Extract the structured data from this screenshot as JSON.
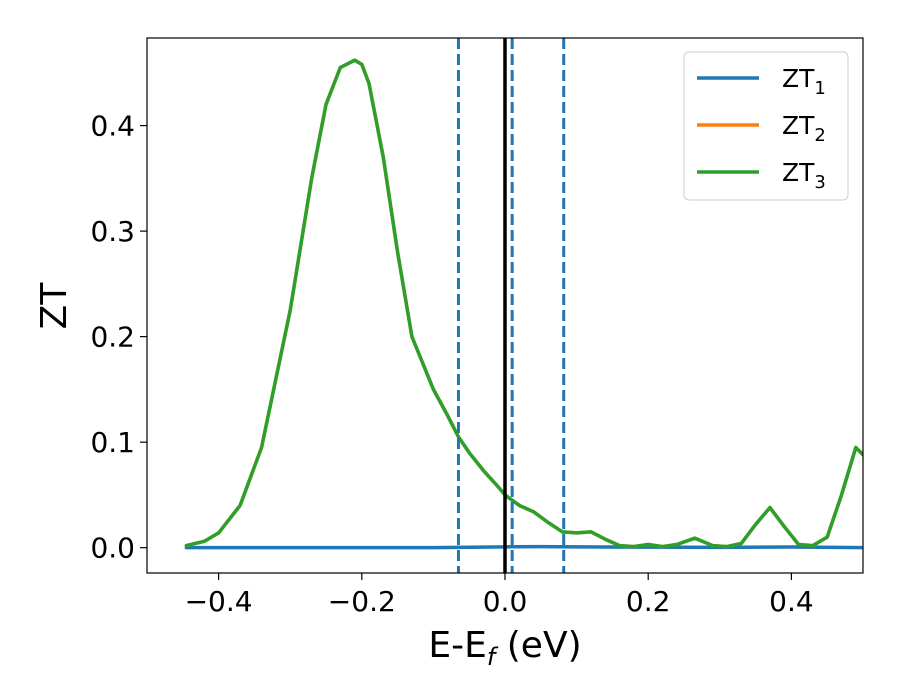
{
  "chart_data": {
    "type": "line",
    "xlabel": "E-E",
    "xlabel_sub": "f",
    "xlabel_unit": " (eV)",
    "ylabel": "ZT",
    "xlim": [
      -0.5,
      0.5
    ],
    "ylim": [
      -0.024,
      0.483
    ],
    "xticks": [
      -0.4,
      -0.2,
      0.0,
      0.2,
      0.4
    ],
    "xtick_labels": [
      "−0.4",
      "−0.2",
      "0.0",
      "0.2",
      "0.4"
    ],
    "yticks": [
      0.0,
      0.1,
      0.2,
      0.3,
      0.4
    ],
    "ytick_labels": [
      "0.0",
      "0.1",
      "0.2",
      "0.3",
      "0.4"
    ],
    "grid": false,
    "legend_position": "top-right",
    "series": [
      {
        "name": "ZT",
        "name_sub": "1",
        "color": "#1f77b4",
        "x": [
          -0.445,
          -0.3,
          -0.1,
          0.0,
          0.05,
          0.1,
          0.2,
          0.3,
          0.4,
          0.5
        ],
        "y": [
          0.0,
          0.0,
          0.0,
          0.0008,
          0.001,
          0.0008,
          0.0005,
          0.0003,
          0.0006,
          0.0
        ]
      },
      {
        "name": "ZT",
        "name_sub": "2",
        "color": "#ff7f0e",
        "x": [
          -0.445,
          -0.42,
          -0.4,
          -0.37,
          -0.34,
          -0.3,
          -0.27,
          -0.25,
          -0.23,
          -0.21,
          -0.2,
          -0.19,
          -0.17,
          -0.15,
          -0.13,
          -0.1,
          -0.08,
          -0.065,
          -0.05,
          -0.03,
          -0.01,
          0.0,
          0.02,
          0.04,
          0.06,
          0.08,
          0.1,
          0.12,
          0.14,
          0.16,
          0.18,
          0.2,
          0.22,
          0.24,
          0.265,
          0.29,
          0.31,
          0.33,
          0.35,
          0.37,
          0.39,
          0.41,
          0.43,
          0.45,
          0.47,
          0.49,
          0.5
        ],
        "y": [
          0.002,
          0.006,
          0.014,
          0.04,
          0.095,
          0.225,
          0.35,
          0.42,
          0.455,
          0.462,
          0.458,
          0.44,
          0.37,
          0.28,
          0.2,
          0.15,
          0.125,
          0.105,
          0.09,
          0.073,
          0.058,
          0.05,
          0.04,
          0.034,
          0.024,
          0.015,
          0.014,
          0.015,
          0.008,
          0.002,
          0.001,
          0.003,
          0.001,
          0.003,
          0.009,
          0.002,
          0.001,
          0.004,
          0.022,
          0.038,
          0.02,
          0.003,
          0.002,
          0.01,
          0.05,
          0.095,
          0.088
        ]
      },
      {
        "name": "ZT",
        "name_sub": "3",
        "color": "#2ca02c",
        "x": [
          -0.445,
          -0.42,
          -0.4,
          -0.37,
          -0.34,
          -0.3,
          -0.27,
          -0.25,
          -0.23,
          -0.21,
          -0.2,
          -0.19,
          -0.17,
          -0.15,
          -0.13,
          -0.1,
          -0.08,
          -0.065,
          -0.05,
          -0.03,
          -0.01,
          0.0,
          0.02,
          0.04,
          0.06,
          0.08,
          0.1,
          0.12,
          0.14,
          0.16,
          0.18,
          0.2,
          0.22,
          0.24,
          0.265,
          0.29,
          0.31,
          0.33,
          0.35,
          0.37,
          0.39,
          0.41,
          0.43,
          0.45,
          0.47,
          0.49,
          0.5
        ],
        "y": [
          0.002,
          0.006,
          0.014,
          0.04,
          0.095,
          0.225,
          0.35,
          0.42,
          0.455,
          0.462,
          0.458,
          0.44,
          0.37,
          0.28,
          0.2,
          0.15,
          0.125,
          0.105,
          0.09,
          0.073,
          0.058,
          0.05,
          0.04,
          0.034,
          0.024,
          0.015,
          0.014,
          0.015,
          0.008,
          0.002,
          0.001,
          0.003,
          0.001,
          0.003,
          0.009,
          0.002,
          0.001,
          0.004,
          0.022,
          0.038,
          0.02,
          0.003,
          0.002,
          0.01,
          0.05,
          0.095,
          0.088
        ]
      }
    ],
    "vlines": [
      {
        "x": -0.065,
        "style": "dashed",
        "color": "#1f77b4"
      },
      {
        "x": 0.0,
        "style": "solid",
        "color": "#000000"
      },
      {
        "x": 0.01,
        "style": "dashed",
        "color": "#1f77b4"
      },
      {
        "x": 0.082,
        "style": "dashed",
        "color": "#1f77b4"
      }
    ]
  }
}
